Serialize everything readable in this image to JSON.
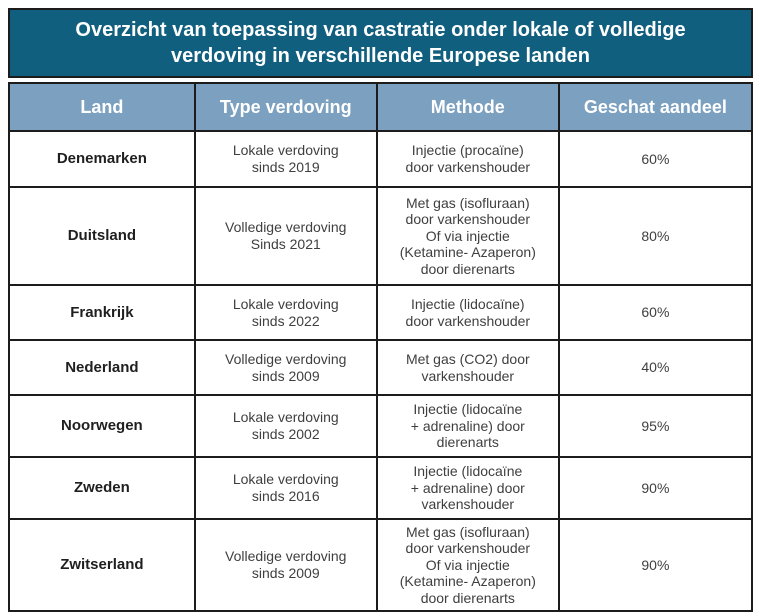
{
  "title": "Overzicht van toepassing van castratie onder lokale of volledige\nverdoving in verschillende Europese landen",
  "colors": {
    "title_background": "#115F7E",
    "header_background": "#7CA0BF",
    "border": "#1C1C1C",
    "title_text": "#FFFFFF",
    "body_text": "#3F3F3F",
    "country_text": "#1F1F1F"
  },
  "table": {
    "columns": [
      "Land",
      "Type verdoving",
      "Methode",
      "Geschat aandeel"
    ],
    "rows": [
      {
        "land": "Denemarken",
        "type_verdoving": "Lokale verdoving\nsinds 2019",
        "methode": "Injectie (procaïne)\ndoor varkenshouder",
        "geschat_aandeel": "60%"
      },
      {
        "land": "Duitsland",
        "type_verdoving": "Volledige verdoving\nSinds 2021",
        "methode": "Met gas (isofluraan)\ndoor varkenshouder\nOf via injectie\n(Ketamine- Azaperon)\ndoor dierenarts",
        "geschat_aandeel": "80%"
      },
      {
        "land": "Frankrijk",
        "type_verdoving": "Lokale verdoving\nsinds 2022",
        "methode": "Injectie (lidocaïne)\ndoor varkenshouder",
        "geschat_aandeel": "60%"
      },
      {
        "land": "Nederland",
        "type_verdoving": "Volledige verdoving\nsinds 2009",
        "methode": "Met gas (CO2) door\nvarkenshouder",
        "geschat_aandeel": "40%"
      },
      {
        "land": "Noorwegen",
        "type_verdoving": "Lokale verdoving\nsinds 2002",
        "methode": "Injectie (lidocaïne\n+ adrenaline) door\ndierenarts",
        "geschat_aandeel": "95%"
      },
      {
        "land": "Zweden",
        "type_verdoving": "Lokale verdoving\nsinds 2016",
        "methode": "Injectie (lidocaïne\n+ adrenaline) door\nvarkenshouder",
        "geschat_aandeel": "90%"
      },
      {
        "land": "Zwitserland",
        "type_verdoving": "Volledige verdoving\nsinds 2009",
        "methode": "Met gas (isofluraan)\ndoor varkenshouder\nOf via injectie\n(Ketamine- Azaperon)\ndoor dierenarts",
        "geschat_aandeel": "90%"
      }
    ]
  }
}
